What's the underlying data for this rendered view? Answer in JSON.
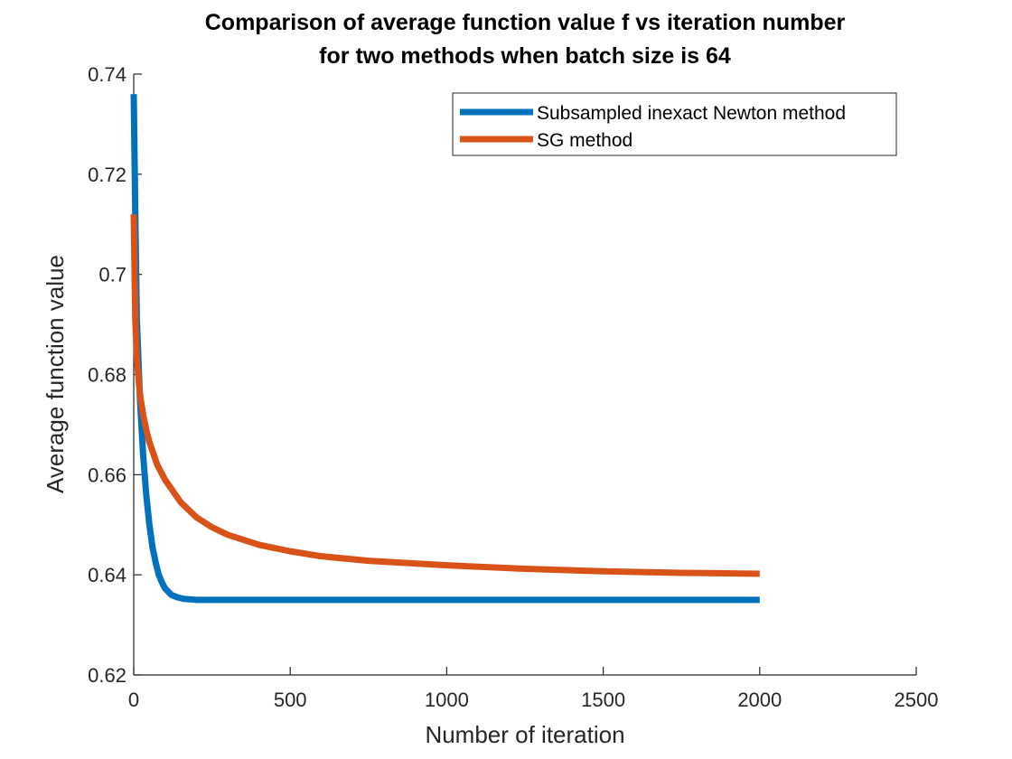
{
  "chart_data": {
    "type": "line",
    "title": [
      "Comparison of average function value f vs iteration number",
      "for two methods when batch size is 64"
    ],
    "xlabel": "Number of iteration",
    "ylabel": "Average function value",
    "xlim": [
      0,
      2500
    ],
    "ylim": [
      0.62,
      0.74
    ],
    "xticks": [
      "0",
      "500",
      "1000",
      "1500",
      "2000",
      "2500"
    ],
    "yticks": [
      "0.62",
      "0.64",
      "0.66",
      "0.68",
      "0.7",
      "0.72",
      "0.74"
    ],
    "grid": false,
    "legend_position": "top-right",
    "series": [
      {
        "name": "Subsampled inexact Newton method",
        "color": "#0072BD",
        "x": [
          0,
          5,
          10,
          20,
          30,
          40,
          50,
          60,
          70,
          80,
          90,
          100,
          120,
          140,
          160,
          180,
          200,
          250,
          300,
          400,
          500,
          750,
          1000,
          1250,
          1500,
          1750,
          2000
        ],
        "y": [
          0.736,
          0.712,
          0.691,
          0.675,
          0.664,
          0.656,
          0.65,
          0.6455,
          0.6425,
          0.64,
          0.6385,
          0.6373,
          0.636,
          0.6355,
          0.6352,
          0.6351,
          0.635,
          0.635,
          0.635,
          0.635,
          0.635,
          0.635,
          0.635,
          0.635,
          0.635,
          0.635,
          0.635
        ]
      },
      {
        "name": "SG method",
        "color": "#D95319",
        "x": [
          0,
          5,
          10,
          20,
          30,
          40,
          50,
          75,
          100,
          150,
          200,
          250,
          300,
          400,
          500,
          600,
          750,
          1000,
          1250,
          1500,
          1750,
          2000
        ],
        "y": [
          0.712,
          0.691,
          0.683,
          0.676,
          0.672,
          0.669,
          0.6665,
          0.662,
          0.659,
          0.6545,
          0.6515,
          0.6495,
          0.648,
          0.646,
          0.6447,
          0.6437,
          0.6428,
          0.6419,
          0.6412,
          0.6407,
          0.6404,
          0.6402
        ]
      }
    ]
  }
}
